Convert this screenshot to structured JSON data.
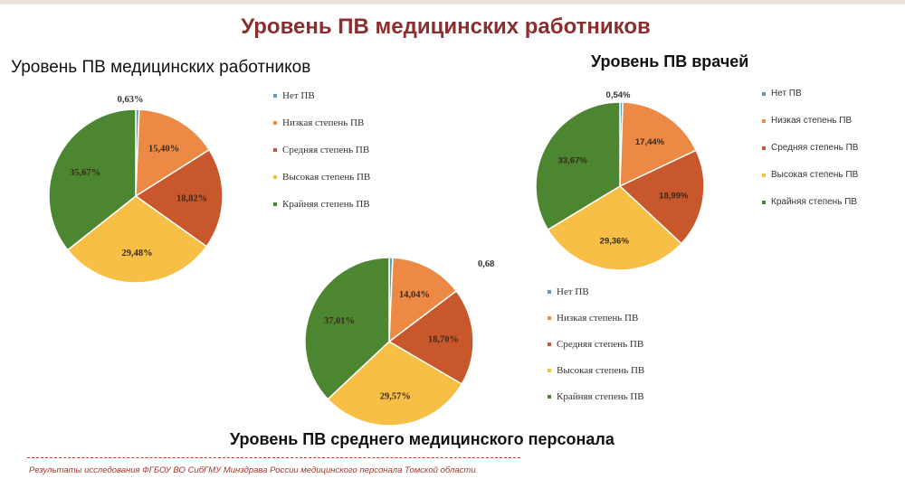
{
  "title": "Уровень ПВ медицинских работников",
  "colors": {
    "title": "#8b2e2e",
    "none": "#4f9ec4",
    "low": "#ec8a45",
    "medium": "#c8572b",
    "high": "#f7bf45",
    "extreme": "#4c8631"
  },
  "chart_data": [
    {
      "type": "pie",
      "title": "Уровень ПВ медицинских работников",
      "legend_position": "right",
      "slices": [
        {
          "label": "Нет ПВ",
          "value": 0.63,
          "value_label": "0,63%"
        },
        {
          "label": "Низкая степень ПВ",
          "value": 15.4,
          "value_label": "15,40%"
        },
        {
          "label": "Средняя степень ПВ",
          "value": 18.82,
          "value_label": "18,82%"
        },
        {
          "label": "Высокая степень ПВ",
          "value": 29.48,
          "value_label": "29,48%"
        },
        {
          "label": "Крайняя степень ПВ",
          "value": 35.67,
          "value_label": "35,67%"
        }
      ]
    },
    {
      "type": "pie",
      "title": "Уровень ПВ врачей",
      "legend_position": "right",
      "slices": [
        {
          "label": "Нет ПВ",
          "value": 0.54,
          "value_label": "0,54%"
        },
        {
          "label": "Низкая степень ПВ",
          "value": 17.44,
          "value_label": "17,44%"
        },
        {
          "label": "Средняя степень ПВ",
          "value": 18.99,
          "value_label": "18,99%"
        },
        {
          "label": "Высокая степень ПВ",
          "value": 29.36,
          "value_label": "29,36%"
        },
        {
          "label": "Крайняя степень ПВ",
          "value": 33.67,
          "value_label": "33,67%"
        }
      ]
    },
    {
      "type": "pie",
      "title": "Уровень ПВ среднего медицинского персонала",
      "legend_position": "bottom-right",
      "slices": [
        {
          "label": "Нет ПВ",
          "value": 0.68,
          "value_label": "0,68"
        },
        {
          "label": "Низкая степень ПВ",
          "value": 14.04,
          "value_label": "14,04%"
        },
        {
          "label": "Средняя степень ПВ",
          "value": 18.7,
          "value_label": "18,70%"
        },
        {
          "label": "Высокая степень ПВ",
          "value": 29.57,
          "value_label": "29,57%"
        },
        {
          "label": "Крайняя степень ПВ",
          "value": 37.01,
          "value_label": "37,01%"
        }
      ]
    }
  ],
  "footer": "Результаты исследования ФГБОУ ВО СибГМУ Минздрава России медицинского персонала Томской области"
}
